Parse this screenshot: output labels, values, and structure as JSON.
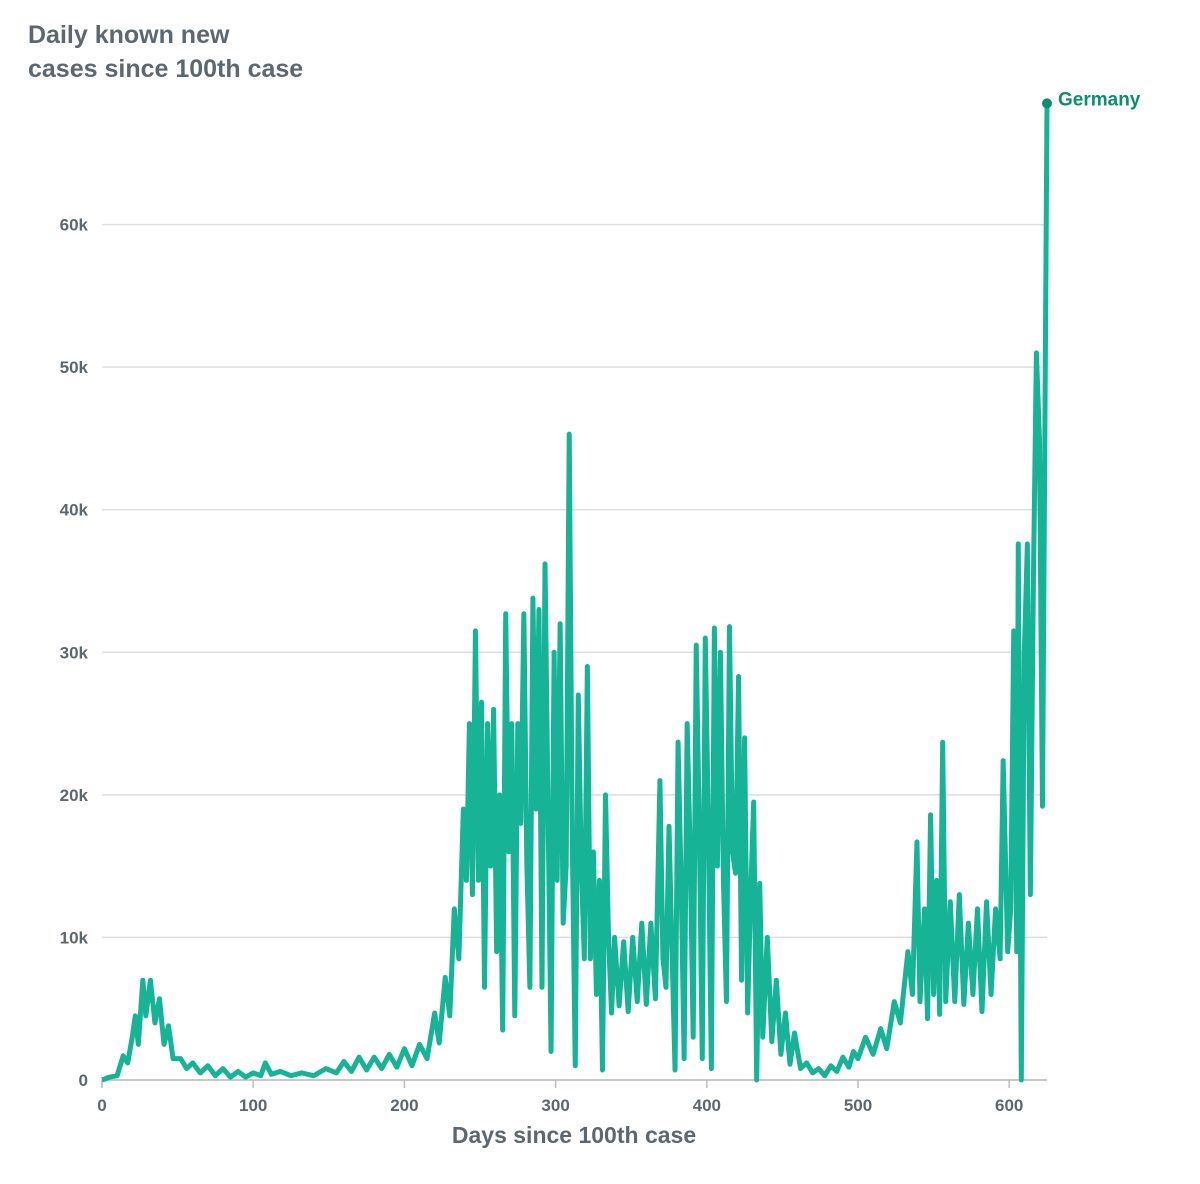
{
  "chart_data": {
    "type": "line",
    "title": "Daily known new\ncases since 100th case",
    "x_label": "Days since 100th case",
    "xlim": [
      0,
      625
    ],
    "xticks": [
      0,
      100,
      200,
      300,
      400,
      500,
      600
    ],
    "ylim": [
      0,
      70000
    ],
    "yticks": [
      0,
      {
        "value": 10000,
        "label": "10k"
      },
      {
        "value": 20000,
        "label": "20k"
      },
      {
        "value": 30000,
        "label": "30k"
      },
      {
        "value": 40000,
        "label": "40k"
      },
      {
        "value": 50000,
        "label": "50k"
      },
      {
        "value": 60000,
        "label": "60k"
      }
    ],
    "grid": true,
    "x": [
      0,
      5,
      10,
      14,
      17,
      20,
      22,
      24,
      27,
      29,
      32,
      35,
      38,
      41,
      44,
      47,
      52,
      56,
      60,
      65,
      70,
      75,
      80,
      85,
      90,
      95,
      100,
      105,
      108,
      112,
      118,
      125,
      132,
      140,
      148,
      155,
      160,
      165,
      170,
      175,
      180,
      185,
      190,
      195,
      200,
      205,
      210,
      215,
      220,
      223,
      227,
      230,
      233,
      236,
      239,
      241,
      243,
      245,
      247,
      249,
      251,
      253,
      255,
      257,
      259,
      261,
      263,
      265,
      267,
      269,
      271,
      273,
      275,
      277,
      279,
      281,
      283,
      285,
      287,
      289,
      291,
      293,
      295,
      297,
      299,
      301,
      303,
      305,
      307,
      309,
      311,
      313,
      315,
      317,
      319,
      321,
      323,
      325,
      327,
      329,
      331,
      333,
      335,
      337,
      339,
      342,
      345,
      348,
      351,
      354,
      357,
      360,
      363,
      366,
      369,
      371,
      373,
      375,
      377,
      379,
      381,
      383,
      385,
      387,
      389,
      391,
      393,
      395,
      397,
      399,
      401,
      403,
      405,
      407,
      409,
      411,
      413,
      415,
      417,
      419,
      421,
      423,
      425,
      427,
      429,
      431,
      433,
      435,
      437,
      440,
      443,
      446,
      449,
      452,
      455,
      458,
      462,
      466,
      470,
      474,
      478,
      482,
      486,
      490,
      494,
      497,
      500,
      505,
      510,
      515,
      519,
      524,
      528,
      533,
      536,
      539,
      541,
      544,
      546,
      548,
      550,
      552,
      554,
      556,
      558,
      561,
      564,
      567,
      570,
      573,
      576,
      579,
      582,
      585,
      588,
      591,
      594,
      596,
      599,
      601,
      603,
      605,
      606,
      608,
      610,
      612,
      614,
      616,
      618,
      620,
      622,
      625
    ],
    "series": [
      {
        "name": "Germany",
        "color": "#16b396",
        "values": [
          0,
          200,
          300,
          1700,
          1200,
          3000,
          4500,
          2500,
          7000,
          4500,
          7000,
          4000,
          5700,
          2500,
          3800,
          1500,
          1500,
          800,
          1200,
          500,
          1000,
          300,
          800,
          200,
          600,
          200,
          500,
          300,
          1200,
          400,
          600,
          300,
          500,
          300,
          800,
          500,
          1300,
          600,
          1600,
          700,
          1600,
          800,
          1800,
          900,
          2200,
          1000,
          2500,
          1500,
          4700,
          2600,
          7200,
          4500,
          12000,
          8500,
          19000,
          14000,
          25000,
          13000,
          31500,
          14000,
          26500,
          6500,
          25000,
          15000,
          26000,
          9000,
          20000,
          3500,
          32700,
          16000,
          25000,
          4500,
          25000,
          18000,
          32700,
          15000,
          6500,
          33800,
          19000,
          33000,
          6500,
          36200,
          19000,
          2000,
          30000,
          14000,
          32000,
          11000,
          15000,
          45300,
          17000,
          1000,
          27000,
          15000,
          8500,
          29000,
          8500,
          16000,
          6000,
          14000,
          700,
          20000,
          10000,
          4700,
          10000,
          5200,
          9700,
          4800,
          10000,
          5500,
          11000,
          5300,
          11000,
          5700,
          21000,
          8500,
          6500,
          17800,
          9000,
          700,
          23700,
          14000,
          1500,
          25000,
          16000,
          3000,
          30500,
          18000,
          1500,
          31000,
          18000,
          800,
          31700,
          15000,
          30000,
          14000,
          5500,
          31800,
          16000,
          14500,
          28300,
          7000,
          24000,
          4700,
          13000,
          19500,
          0,
          13800,
          3000,
          10000,
          2700,
          7000,
          1800,
          4700,
          1100,
          3300,
          800,
          1200,
          500,
          800,
          300,
          1000,
          600,
          1600,
          900,
          2000,
          1500,
          3000,
          1800,
          3600,
          2200,
          5500,
          4000,
          9000,
          6000,
          16700,
          5500,
          12000,
          4300,
          18600,
          6000,
          14000,
          4600,
          23700,
          5500,
          12500,
          5500,
          13000,
          5300,
          11000,
          6000,
          12000,
          4800,
          12500,
          6000,
          12000,
          8500,
          22400,
          9000,
          12000,
          31500,
          9000,
          37600,
          0,
          30000,
          37600,
          13000,
          35000,
          51000,
          45000,
          19200,
          68500
        ]
      }
    ]
  }
}
